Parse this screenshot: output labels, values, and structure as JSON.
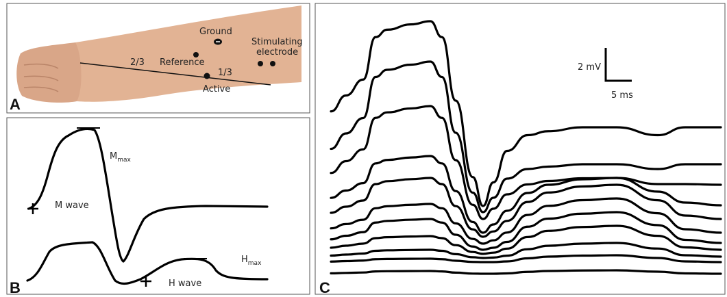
{
  "panel_a": {
    "label": "A",
    "ground": "Ground",
    "stimulating": [
      "Stimulating",
      "electrode"
    ],
    "reference": "Reference",
    "two_thirds": "2/3",
    "one_third": "1/3",
    "active": "Active"
  },
  "panel_b": {
    "label": "B",
    "m_max": {
      "main": "M",
      "sub": "max"
    },
    "m_wave": "M wave",
    "h_max": {
      "main": "H",
      "sub": "max"
    },
    "h_wave": "H wave"
  },
  "panel_c": {
    "label": "C",
    "amplitude_scale": "2 mV",
    "time_scale": "5 ms"
  }
}
